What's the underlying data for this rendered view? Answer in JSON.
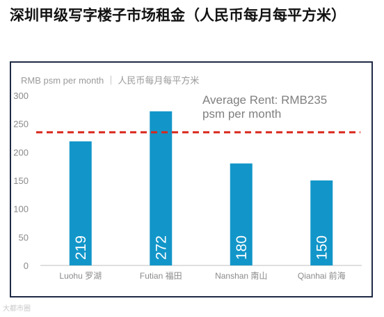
{
  "title": "深圳甲级写字楼子市场租金（人民币每月每平方米）",
  "watermark": "大都市圈",
  "colors": {
    "bar": "#1296c9",
    "reference": "#d9261c",
    "frame": "#1f2a44"
  },
  "chart_data": {
    "type": "bar",
    "unit_label": "RMB psm per month ｜ 人民币每月每平方米",
    "categories": [
      "Luohu 罗湖",
      "Futian 福田",
      "Nanshan 南山",
      "Qianhai 前海"
    ],
    "values": [
      219,
      272,
      180,
      150
    ],
    "data_labels": [
      "219",
      "272",
      "180",
      "150"
    ],
    "ylim": [
      0,
      300
    ],
    "yticks": [
      0,
      50,
      100,
      150,
      200,
      250,
      300
    ],
    "grid": false,
    "reference_line": {
      "value": 235,
      "style": "dashed",
      "label_lines": [
        "Average Rent: RMB235",
        "psm per month"
      ]
    }
  }
}
